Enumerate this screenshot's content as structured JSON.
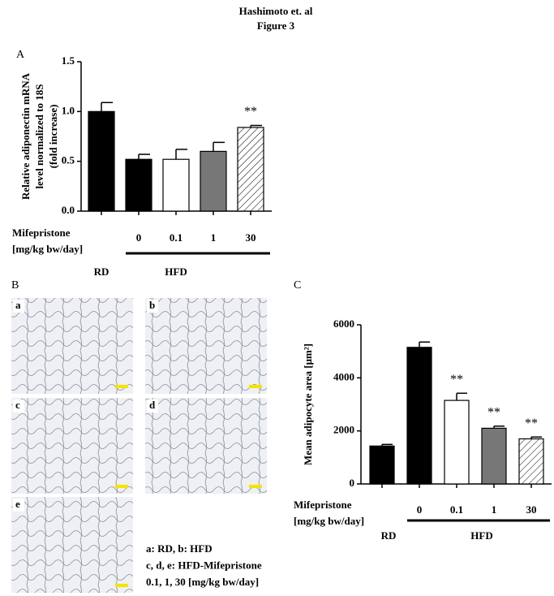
{
  "header": {
    "title": [
      "Hashimoto et. al",
      "Figure 3"
    ]
  },
  "chart_data": [
    {
      "type": "bar",
      "panel": "A",
      "ylabel": [
        "Relative adiponectin mRNA",
        "level normalized to 18S",
        "(fold increase)"
      ],
      "categories": [
        null,
        "0",
        "0.1",
        "1",
        "30"
      ],
      "values": [
        1.0,
        0.52,
        0.52,
        0.6,
        0.84
      ],
      "errors": [
        0.09,
        0.05,
        0.1,
        0.09,
        0.02
      ],
      "fills": [
        "black",
        "black",
        "white",
        "gray",
        "hatch"
      ],
      "significance": [
        null,
        null,
        null,
        null,
        "**"
      ],
      "ylim": [
        0,
        1.5
      ],
      "yticks": [
        {
          "value": 0,
          "label": "0.0"
        },
        0.5,
        {
          "value": 1,
          "label": "1.0"
        },
        1.5
      ],
      "row_label": [
        "Mifepristone",
        "[mg/kg bw/day]"
      ],
      "group_labels": [
        "RD",
        "HFD"
      ]
    },
    {
      "type": "bar",
      "panel": "C",
      "ylabel": [
        "Mean adipocyte area  [μm²]"
      ],
      "categories": [
        null,
        "0",
        "0.1",
        "1",
        "30"
      ],
      "values": [
        1430,
        5150,
        3150,
        2100,
        1700
      ],
      "errors": [
        60,
        200,
        270,
        80,
        70
      ],
      "fills": [
        "black",
        "black",
        "white",
        "gray",
        "hatch"
      ],
      "significance": [
        null,
        null,
        "**",
        "**",
        "**"
      ],
      "ylim": [
        0,
        6000
      ],
      "yticks": [
        0,
        2000,
        4000,
        6000
      ],
      "row_label": [
        "Mifepristone",
        "[mg/kg bw/day]"
      ],
      "group_labels": [
        "RD",
        "HFD"
      ]
    }
  ],
  "panel_b": {
    "panel": "B",
    "images": [
      "a",
      "b",
      "c",
      "d",
      "e"
    ],
    "legend": [
      "a: RD, b: HFD",
      "c, d, e: HFD-Mifepristone",
      "0.1, 1, 30  [mg/kg bw/day]"
    ]
  }
}
